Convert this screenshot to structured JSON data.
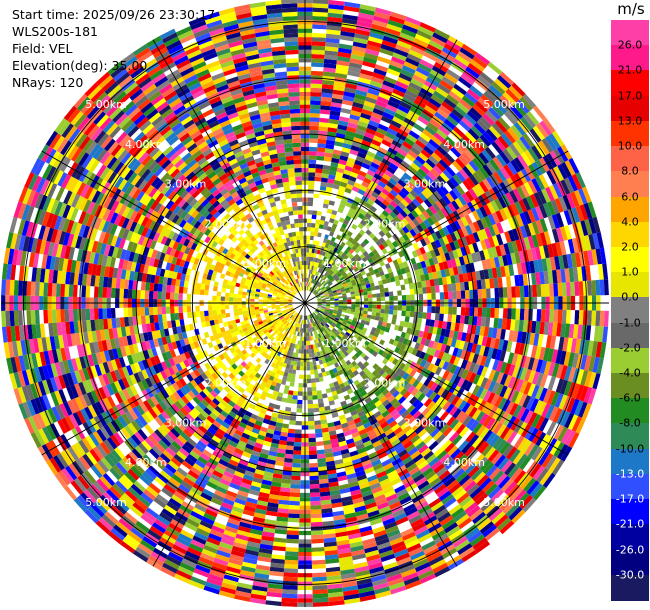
{
  "header": {
    "start_time": "Start time: 2025/09/26 23:30:17",
    "instrument": "WLS200s-181",
    "field": "Field: VEL",
    "elevation": "Elevation(deg): 35.00",
    "nrays": "NRays: 120"
  },
  "colorbar": {
    "unit": "m/s",
    "ticks": [
      "26.0",
      "21.0",
      "17.0",
      "13.0",
      "10.0",
      "8.0",
      "6.0",
      "4.0",
      "2.0",
      "1.0",
      "0.0",
      "-1.0",
      "-2.0",
      "-4.0",
      "-6.0",
      "-8.0",
      "-10.0",
      "-13.0",
      "-17.0",
      "-21.0",
      "-26.0",
      "-30.0"
    ],
    "colors": [
      "#ff3fa8",
      "#ff1a8c",
      "#ff0000",
      "#e60000",
      "#ff3300",
      "#ff6347",
      "#ff7f50",
      "#ffa500",
      "#ffd700",
      "#ffff00",
      "#e6e600",
      "#808080",
      "#696969",
      "#9acd32",
      "#6b8e23",
      "#228b22",
      "#2e8b57",
      "#1e78c8",
      "#3050ff",
      "#0000ff",
      "#0000a0",
      "#000080",
      "#1a1a60"
    ]
  },
  "chart_data": {
    "type": "heatmap",
    "subtype": "polar PPI scan",
    "field": "VEL",
    "units": "m/s",
    "elevation_deg": 35.0,
    "n_rays": 120,
    "range_rings_km": [
      1.0,
      2.0,
      3.0,
      4.0,
      5.0
    ],
    "ring_labels": [
      "1.00km",
      "2.00km",
      "3.00km",
      "4.00km",
      "5.00km"
    ],
    "spokes_deg": [
      0,
      30,
      60,
      90,
      120,
      150,
      180,
      210,
      240,
      270,
      300,
      330
    ],
    "value_range": [
      -30.0,
      30.0
    ],
    "max_range_km": 5.4,
    "pattern": "near-field: positive velocities (yellow/orange) west, negative (greens) east; beyond ~2 km range noisy values spanning full scale"
  }
}
